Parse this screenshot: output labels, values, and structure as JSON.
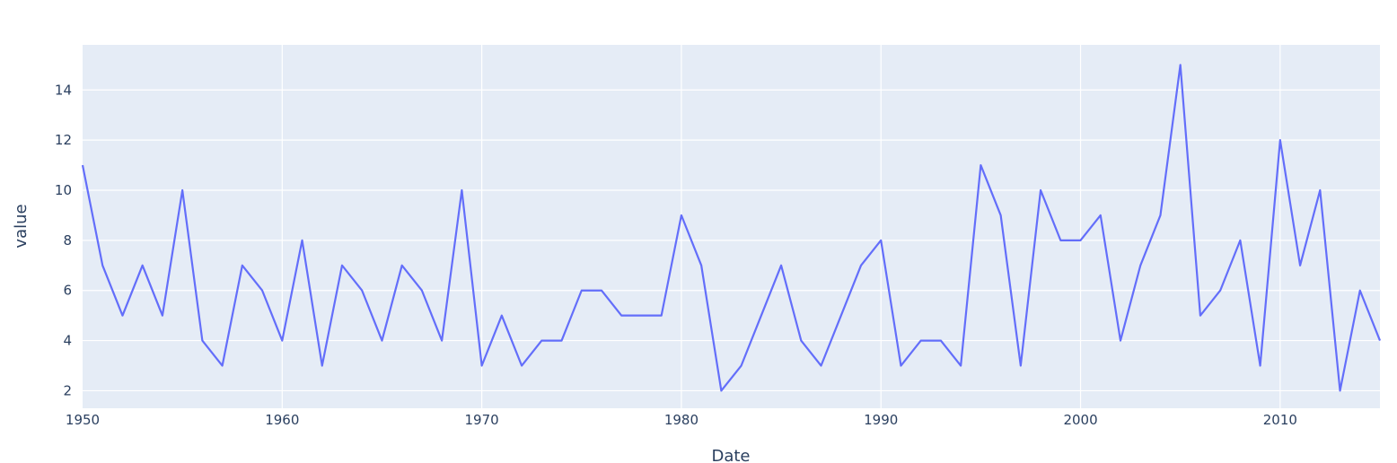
{
  "chart_data": {
    "type": "line",
    "title": "",
    "xlabel": "Date",
    "ylabel": "value",
    "xlim": [
      1950,
      2015
    ],
    "ylim": [
      1.3,
      15.8
    ],
    "x_ticks": [
      "1950",
      "1960",
      "1970",
      "1980",
      "1990",
      "2000",
      "2010"
    ],
    "y_ticks": [
      "2",
      "4",
      "6",
      "8",
      "10",
      "12",
      "14"
    ],
    "grid": true,
    "colors": {
      "plot_bg": "#e5ecf6",
      "line": "#636efa",
      "text": "#2a3f5f",
      "grid": "#ffffff"
    },
    "series": [
      {
        "x": [
          1950,
          1951,
          1952,
          1953,
          1954,
          1955,
          1956,
          1957,
          1958,
          1959,
          1960,
          1961,
          1962,
          1963,
          1964,
          1965,
          1966,
          1967,
          1968,
          1969,
          1970,
          1971,
          1972,
          1973,
          1974,
          1975,
          1976,
          1977,
          1978,
          1979,
          1980,
          1981,
          1982,
          1983,
          1984,
          1985,
          1986,
          1987,
          1988,
          1989,
          1990,
          1991,
          1992,
          1993,
          1994,
          1995,
          1996,
          1997,
          1998,
          1999,
          2000,
          2001,
          2002,
          2003,
          2004,
          2005,
          2006,
          2007,
          2008,
          2009,
          2010,
          2011,
          2012,
          2013,
          2014,
          2015
        ],
        "y": [
          11,
          7,
          5,
          7,
          5,
          10,
          4,
          3,
          7,
          6,
          4,
          8,
          3,
          7,
          6,
          4,
          7,
          6,
          4,
          10,
          3,
          5,
          3,
          4,
          4,
          6,
          6,
          5,
          5,
          5,
          9,
          7,
          2,
          3,
          5,
          7,
          4,
          3,
          5,
          7,
          8,
          3,
          4,
          4,
          3,
          11,
          9,
          3,
          10,
          8,
          8,
          9,
          4,
          7,
          9,
          15,
          5,
          6,
          8,
          3,
          12,
          7,
          10,
          2,
          6,
          4
        ]
      }
    ]
  }
}
